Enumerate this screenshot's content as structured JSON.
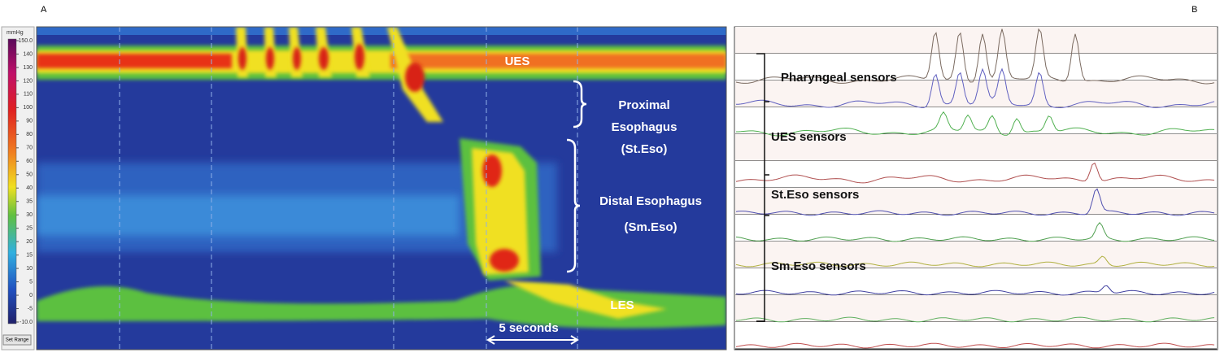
{
  "panel_a": {
    "label": "A",
    "colorbar": {
      "unit": "mmHg",
      "labels": [
        "150.0",
        "140",
        "130",
        "120",
        "110",
        "100",
        "90",
        "80",
        "70",
        "60",
        "50",
        "40",
        "35",
        "30",
        "25",
        "20",
        "15",
        "10",
        "5",
        "0",
        "-5",
        "-10.0"
      ],
      "button": "Set Range"
    },
    "annotations": {
      "ues": "UES",
      "proximal": [
        "Proximal",
        "Esophagus",
        "(St.Eso)"
      ],
      "distal": [
        "Distal Esophagus",
        "(Sm.Eso)"
      ],
      "les": "LES",
      "scale": "5 seconds"
    }
  },
  "panel_b": {
    "label": "B",
    "sensors": [
      "Pharyngeal sensors",
      "UES sensors",
      "St.Eso sensors",
      "Sm.Eso sensors"
    ]
  }
}
